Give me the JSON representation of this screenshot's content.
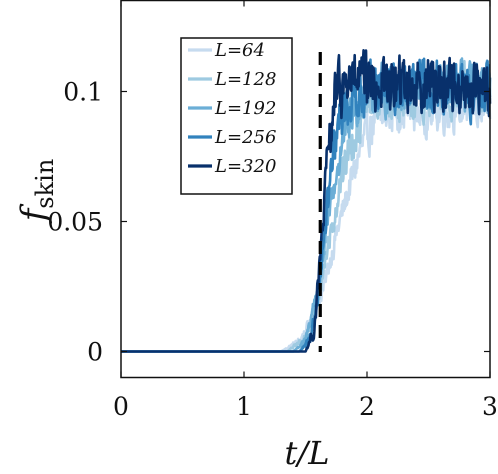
{
  "chart_data": {
    "type": "line",
    "xlabel": "t/L",
    "ylabel": "f_skin",
    "xlim": [
      0,
      3
    ],
    "ylim": [
      -0.01,
      0.135
    ],
    "xticks": [
      0,
      1,
      2,
      3
    ],
    "xtick_labels": [
      "0",
      "1",
      "2",
      "3"
    ],
    "yticks": [
      0,
      0.05,
      0.1
    ],
    "ytick_labels": [
      "0",
      "0.05",
      "0.1"
    ],
    "grid": false,
    "legend_position": "top-left",
    "vertical_marker": {
      "x": 1.62,
      "style": "dashed",
      "color": "#000000"
    },
    "series": [
      {
        "name": "L=64",
        "color": "#c6dbef",
        "onset": 1.32,
        "rise_end": 2.02,
        "plateau": 0.092,
        "noise": 0.009,
        "x": [
          0,
          1.3,
          1.45,
          1.55,
          1.65,
          1.75,
          1.85,
          1.95,
          2.05,
          2.2,
          2.5,
          2.8,
          3.0
        ],
        "y": [
          0,
          0,
          0.004,
          0.012,
          0.025,
          0.045,
          0.062,
          0.078,
          0.088,
          0.093,
          0.092,
          0.094,
          0.093
        ]
      },
      {
        "name": "L=128",
        "color": "#9ecae1",
        "onset": 1.36,
        "rise_end": 1.92,
        "plateau": 0.097,
        "noise": 0.01,
        "x": [
          0,
          1.35,
          1.5,
          1.6,
          1.7,
          1.8,
          1.9,
          2.0,
          2.2,
          2.5,
          2.8,
          3.0
        ],
        "y": [
          0,
          0,
          0.005,
          0.02,
          0.045,
          0.068,
          0.085,
          0.095,
          0.098,
          0.097,
          0.1,
          0.099
        ]
      },
      {
        "name": "L=192",
        "color": "#6baed6",
        "onset": 1.42,
        "rise_end": 1.84,
        "plateau": 0.1,
        "noise": 0.01,
        "x": [
          0,
          1.4,
          1.5,
          1.6,
          1.7,
          1.8,
          1.9,
          2.0,
          2.2,
          2.5,
          2.8,
          3.0
        ],
        "y": [
          0,
          0,
          0.004,
          0.025,
          0.055,
          0.08,
          0.095,
          0.1,
          0.101,
          0.1,
          0.102,
          0.1
        ]
      },
      {
        "name": "L=256",
        "color": "#3182bd",
        "onset": 1.46,
        "rise_end": 1.78,
        "plateau": 0.101,
        "noise": 0.011,
        "x": [
          0,
          1.45,
          1.55,
          1.62,
          1.7,
          1.78,
          1.9,
          2.0,
          2.2,
          2.5,
          2.8,
          3.0
        ],
        "y": [
          0,
          0,
          0.005,
          0.03,
          0.065,
          0.09,
          0.1,
          0.102,
          0.101,
          0.103,
          0.1,
          0.101
        ]
      },
      {
        "name": "L=320",
        "color": "#08306b",
        "onset": 1.5,
        "rise_end": 1.74,
        "plateau": 0.102,
        "noise": 0.012,
        "x": [
          0,
          1.5,
          1.57,
          1.62,
          1.68,
          1.74,
          1.85,
          2.0,
          2.2,
          2.5,
          2.8,
          3.0
        ],
        "y": [
          0,
          0,
          0.008,
          0.035,
          0.075,
          0.098,
          0.104,
          0.103,
          0.102,
          0.104,
          0.101,
          0.102
        ]
      }
    ]
  }
}
